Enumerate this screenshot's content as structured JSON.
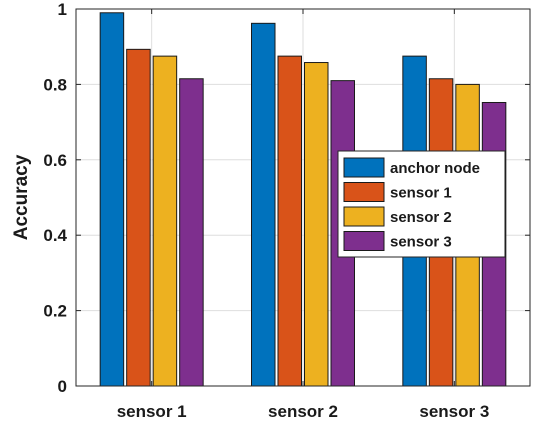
{
  "chart_data": {
    "type": "bar",
    "title": "",
    "xlabel": "",
    "ylabel": "Accuracy",
    "ylim": [
      0,
      1
    ],
    "yticks": [
      0,
      0.2,
      0.4,
      0.6,
      0.8,
      1
    ],
    "ytick_labels": [
      "0",
      "0.2",
      "0.4",
      "0.6",
      "0.8",
      "1"
    ],
    "grid": true,
    "legend_position": "center-right",
    "categories": [
      "sensor 1",
      "sensor 2",
      "sensor 3"
    ],
    "series": [
      {
        "name": "anchor node",
        "color": "#0072BD",
        "values": [
          0.99,
          0.962,
          0.875
        ]
      },
      {
        "name": "sensor 1",
        "color": "#D95319",
        "values": [
          0.893,
          0.875,
          0.815
        ]
      },
      {
        "name": "sensor 2",
        "color": "#EDB120",
        "values": [
          0.875,
          0.858,
          0.8
        ]
      },
      {
        "name": "sensor 3",
        "color": "#7E2F8E",
        "values": [
          0.815,
          0.81,
          0.752
        ]
      }
    ]
  }
}
